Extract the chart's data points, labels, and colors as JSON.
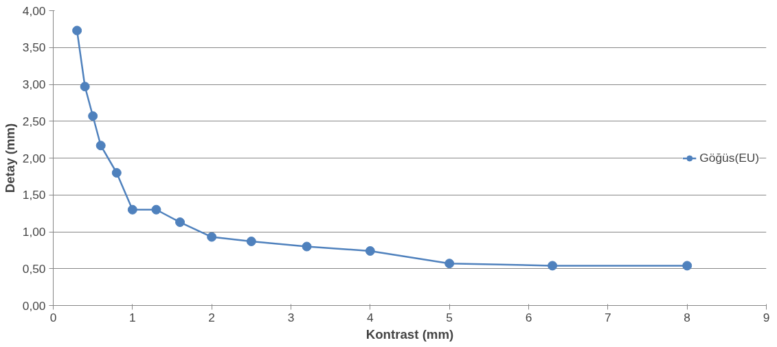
{
  "chart_data": {
    "type": "line",
    "xlabel": "Kontrast (mm)",
    "ylabel": "Detay (mm)",
    "x": [
      0.3,
      0.4,
      0.5,
      0.6,
      0.8,
      1.0,
      1.3,
      1.6,
      2.0,
      2.5,
      3.2,
      4.0,
      5.0,
      6.3,
      8.0
    ],
    "series": [
      {
        "name": "Göğüs(EU)",
        "color": "#4f81bd",
        "values": [
          3.73,
          2.97,
          2.57,
          2.17,
          1.8,
          1.3,
          1.3,
          1.13,
          0.93,
          0.87,
          0.8,
          0.74,
          0.57,
          0.54,
          0.54
        ]
      }
    ],
    "xlim": [
      0,
      9
    ],
    "xticks": [
      0,
      1,
      2,
      3,
      4,
      5,
      6,
      7,
      8,
      9
    ],
    "ylim": [
      0,
      4
    ],
    "yticks": [
      {
        "value": 0,
        "label": "0,00"
      },
      {
        "value": 0.5,
        "label": "0,50"
      },
      {
        "value": 1,
        "label": "1,00"
      },
      {
        "value": 1.5,
        "label": "1,50"
      },
      {
        "value": 2,
        "label": "2,00"
      },
      {
        "value": 2.5,
        "label": "2,50"
      },
      {
        "value": 3,
        "label": "3,00"
      },
      {
        "value": 3.5,
        "label": "3,50"
      },
      {
        "value": 4,
        "label": "4,00"
      }
    ],
    "grid": "y",
    "legend": "right",
    "marker": "circle",
    "line_style": "solid"
  }
}
